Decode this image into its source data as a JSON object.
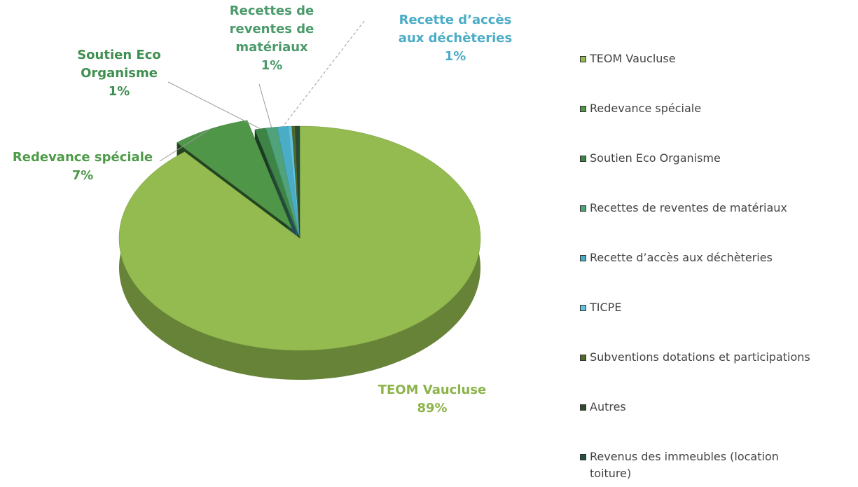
{
  "chart_data": {
    "type": "pie",
    "categories": [
      "TEOM Vaucluse",
      "Redevance spéciale",
      "Soutien Eco Organisme",
      "Recettes de reventes de matériaux",
      "Recette d’accès aux déchèteries",
      "TICPE",
      "Subventions dotations et participations",
      "Autres",
      "Revenus des immeubles (location toiture)"
    ],
    "values": [
      89,
      7,
      1,
      1,
      1,
      0.3,
      0.3,
      0.2,
      0.2
    ],
    "value_labels": [
      "89%",
      "7%",
      "1%",
      "1%",
      "1%",
      null,
      null,
      null,
      null
    ],
    "colors": [
      "#93bb4f",
      "#4f9648",
      "#3d8446",
      "#4fa27a",
      "#4bacc6",
      "#62c3e0",
      "#4f6a2a",
      "#2f4a30",
      "#25503c"
    ],
    "label_colors": [
      "#8cb44a",
      "#4e9a48",
      "#3f8f50",
      "#4a9a6a",
      "#4bacc6",
      null,
      null,
      null,
      null
    ],
    "legend": "right"
  }
}
